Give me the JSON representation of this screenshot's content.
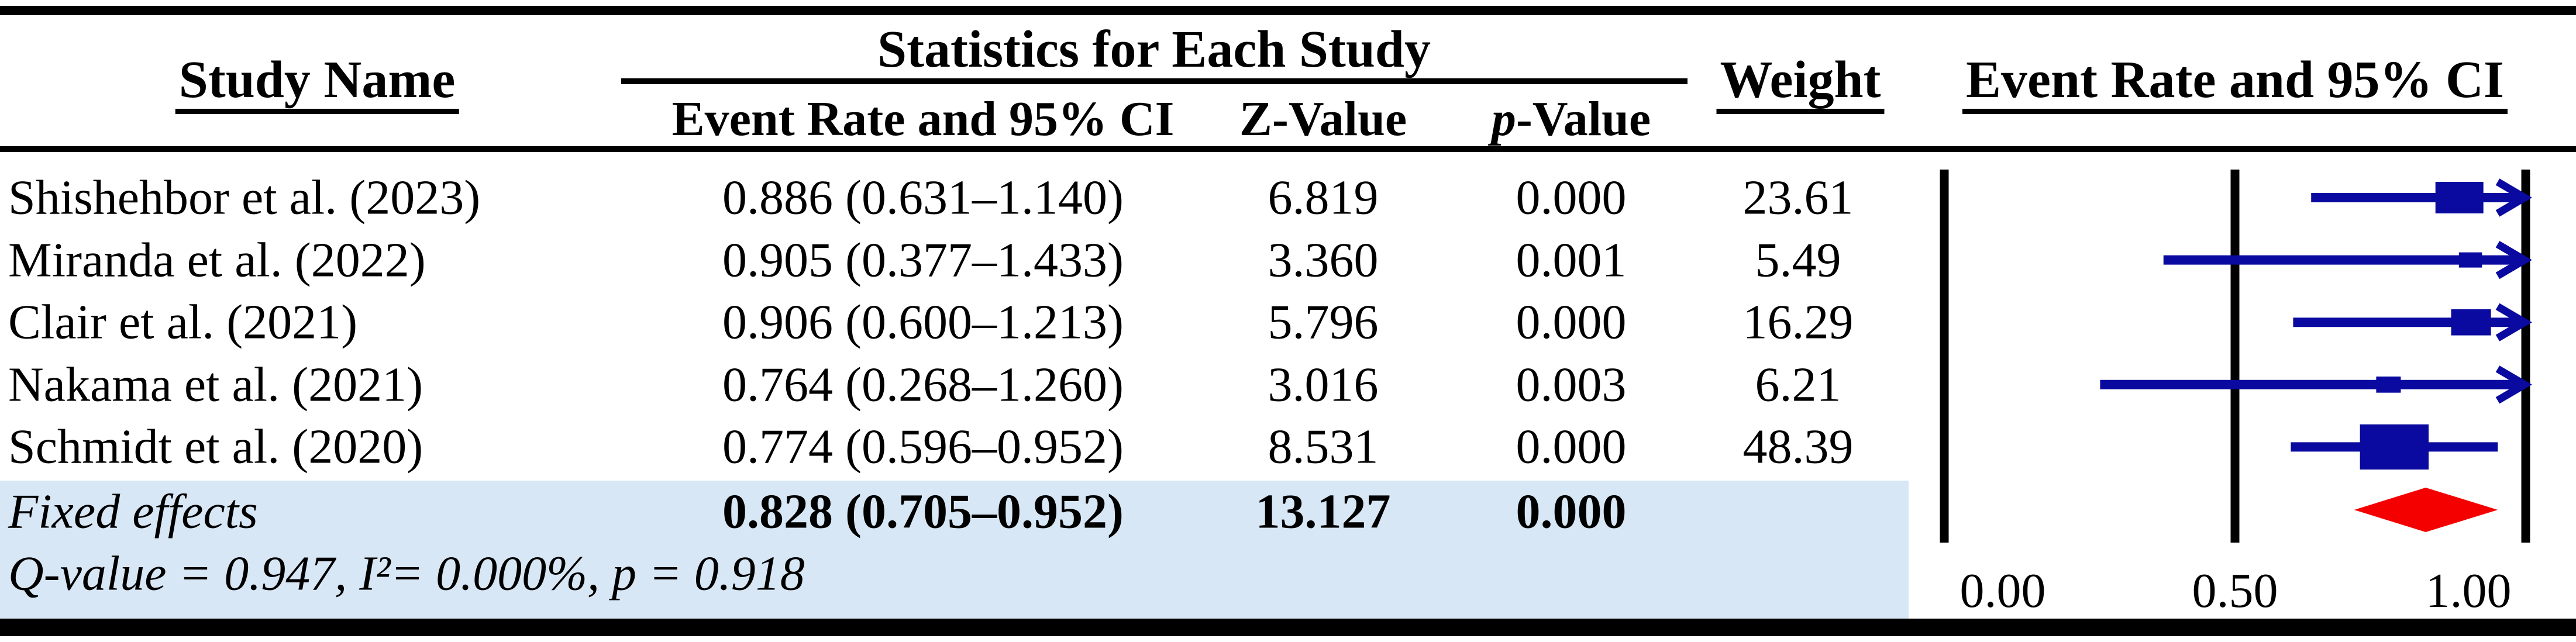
{
  "header": {
    "study_name": "Study Name",
    "stats_group": "Statistics for Each Study",
    "event_rate_ci": "Event Rate and 95% CI",
    "z_value": "Z-Value",
    "p_value_prefix": "p",
    "p_value_suffix": "-Value",
    "weight": "Weight",
    "plot_title": "Event Rate and 95% CI"
  },
  "rows": [
    {
      "study": "Shishehbor et al. (2023)",
      "event_rate_ci": "0.886 (0.631–1.140)",
      "z_value": "6.819",
      "p_value": "0.000",
      "weight": "23.61"
    },
    {
      "study": "Miranda et al. (2022)",
      "event_rate_ci": "0.905 (0.377–1.433)",
      "z_value": "3.360",
      "p_value": "0.001",
      "weight": "5.49"
    },
    {
      "study": "Clair et al. (2021)",
      "event_rate_ci": "0.906 (0.600–1.213)",
      "z_value": "5.796",
      "p_value": "0.000",
      "weight": "16.29"
    },
    {
      "study": "Nakama et al. (2021)",
      "event_rate_ci": "0.764 (0.268–1.260)",
      "z_value": "3.016",
      "p_value": "0.003",
      "weight": "6.21"
    },
    {
      "study": "Schmidt et al. (2020)",
      "event_rate_ci": "0.774 (0.596–0.952)",
      "z_value": "8.531",
      "p_value": "0.000",
      "weight": "48.39"
    }
  ],
  "summary_row": {
    "label": "Fixed effects",
    "event_rate_ci": "0.828 (0.705–0.952)",
    "z_value": "13.127",
    "p_value": "0.000"
  },
  "heterogeneity_note": "Q-value = 0.947, I²= 0.000%, p = 0.918",
  "axis_tick_labels": [
    "0.00",
    "0.50",
    "1.00"
  ],
  "colors": {
    "marker_blue": "#0A0AA0",
    "summary_red": "#F40000",
    "highlight_blue": "#D8E7F5",
    "rule_black": "#000000"
  },
  "chart_data": {
    "type": "forest",
    "title": "Event Rate and 95% CI",
    "x_axis": {
      "min": 0.0,
      "max": 1.0,
      "gridlines": [
        0.0,
        0.5,
        1.0
      ],
      "tick_labels": [
        "0.00",
        "0.50",
        "1.00"
      ]
    },
    "studies": [
      {
        "name": "Shishehbor et al. (2023)",
        "event_rate": 0.886,
        "ci_low": 0.631,
        "ci_high": 1.14,
        "z": 6.819,
        "p": 0.0,
        "weight": 23.61
      },
      {
        "name": "Miranda et al. (2022)",
        "event_rate": 0.905,
        "ci_low": 0.377,
        "ci_high": 1.433,
        "z": 3.36,
        "p": 0.001,
        "weight": 5.49
      },
      {
        "name": "Clair et al. (2021)",
        "event_rate": 0.906,
        "ci_low": 0.6,
        "ci_high": 1.213,
        "z": 5.796,
        "p": 0.0,
        "weight": 16.29
      },
      {
        "name": "Nakama et al. (2021)",
        "event_rate": 0.764,
        "ci_low": 0.268,
        "ci_high": 1.26,
        "z": 3.016,
        "p": 0.003,
        "weight": 6.21
      },
      {
        "name": "Schmidt et al. (2020)",
        "event_rate": 0.774,
        "ci_low": 0.596,
        "ci_high": 0.952,
        "z": 8.531,
        "p": 0.0,
        "weight": 48.39
      }
    ],
    "summary": {
      "model": "Fixed effects",
      "event_rate": 0.828,
      "ci_low": 0.705,
      "ci_high": 0.952,
      "z": 13.127,
      "p": 0.0
    },
    "heterogeneity": {
      "Q_value": 0.947,
      "I2_percent": 0.0,
      "p": 0.918
    },
    "legend": "none",
    "marker_color": "#0A0AA0",
    "summary_color": "#F40000"
  }
}
